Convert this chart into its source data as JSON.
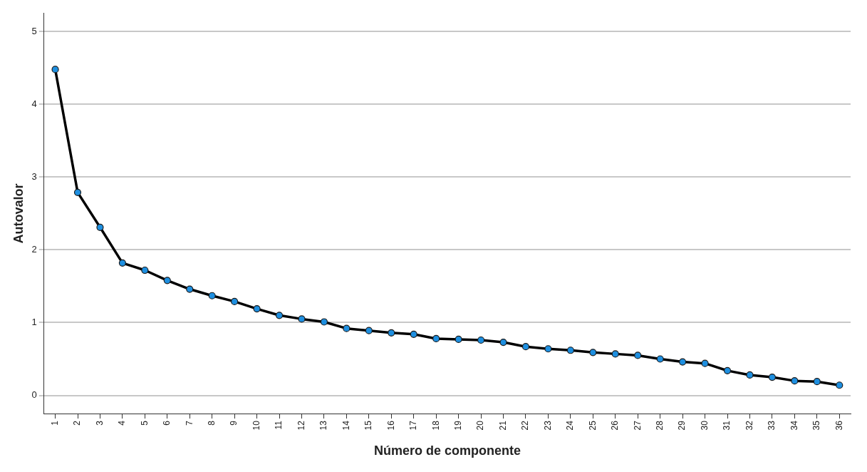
{
  "chart_data": {
    "type": "line",
    "xlabel": "Número de componente",
    "ylabel": "Autovalor",
    "categories": [
      "1",
      "2",
      "3",
      "4",
      "5",
      "6",
      "7",
      "8",
      "9",
      "10",
      "11",
      "12",
      "13",
      "14",
      "15",
      "16",
      "17",
      "18",
      "19",
      "20",
      "21",
      "22",
      "23",
      "24",
      "25",
      "26",
      "27",
      "28",
      "29",
      "30",
      "31",
      "32",
      "33",
      "34",
      "35",
      "36"
    ],
    "series": [
      {
        "color": "#000000",
        "values": [
          4.48,
          2.79,
          2.31,
          1.82,
          1.72,
          1.58,
          1.46,
          1.37,
          1.29,
          1.19,
          1.1,
          1.05,
          1.01,
          0.92,
          0.89,
          0.86,
          0.84,
          0.78,
          0.77,
          0.76,
          0.73,
          0.67,
          0.64,
          0.62,
          0.59,
          0.57,
          0.55,
          0.5,
          0.46,
          0.44,
          0.34,
          0.28,
          0.25,
          0.2,
          0.19,
          0.14
        ]
      }
    ],
    "ylim": [
      -0.25,
      5.25
    ],
    "yticks": [
      0,
      1,
      2,
      3,
      4,
      5
    ],
    "grid": "y",
    "legend": false,
    "marker": "circle",
    "line_style": "solid"
  }
}
